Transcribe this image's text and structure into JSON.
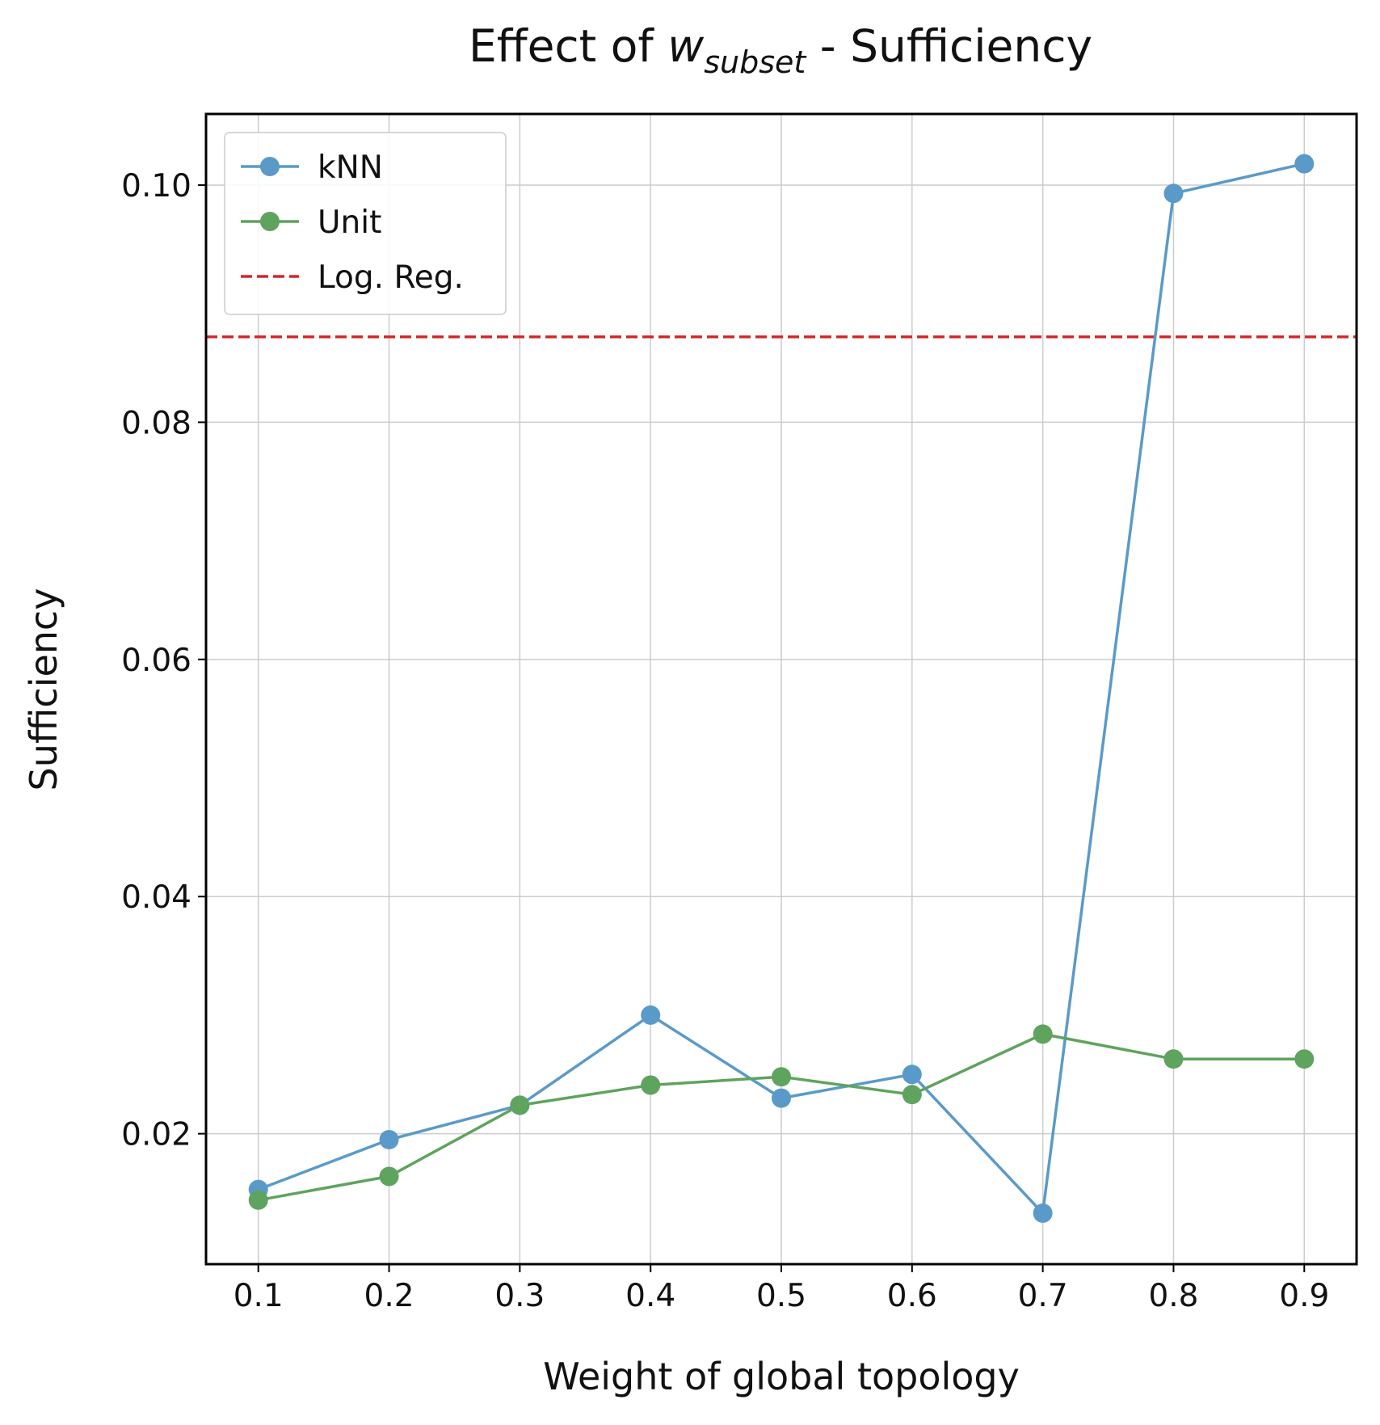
{
  "chart_data": {
    "type": "line",
    "title": {
      "prefix": "Effect of ",
      "symbol": "w",
      "subscript": "subset",
      "suffix": " - Sufficiency"
    },
    "xlabel": "Weight of global topology",
    "ylabel": "Sufficiency",
    "x": [
      0.1,
      0.2,
      0.3,
      0.4,
      0.5,
      0.6,
      0.7,
      0.8,
      0.9
    ],
    "xlim": [
      0.06,
      0.94
    ],
    "ylim": [
      0.009,
      0.106
    ],
    "x_ticks": [
      "0.1",
      "0.2",
      "0.3",
      "0.4",
      "0.5",
      "0.6",
      "0.7",
      "0.8",
      "0.9"
    ],
    "y_ticks": [
      "0.02",
      "0.04",
      "0.06",
      "0.08",
      "0.10"
    ],
    "grid": true,
    "legend_position": "top-left",
    "series": [
      {
        "name": "kNN",
        "color": "#5a9ac9",
        "style": "line-marker",
        "values": [
          0.0153,
          0.0195,
          0.0224,
          0.03,
          0.023,
          0.025,
          0.0133,
          0.0993,
          0.1018
        ]
      },
      {
        "name": "Unit",
        "color": "#5ea35e",
        "style": "line-marker",
        "values": [
          0.0144,
          0.0164,
          0.0224,
          0.0241,
          0.0248,
          0.0233,
          0.0284,
          0.0263,
          0.0263
        ]
      },
      {
        "name": "Log. Reg.",
        "color": "#d62728",
        "style": "dashed-hline",
        "value": 0.0872
      }
    ]
  }
}
